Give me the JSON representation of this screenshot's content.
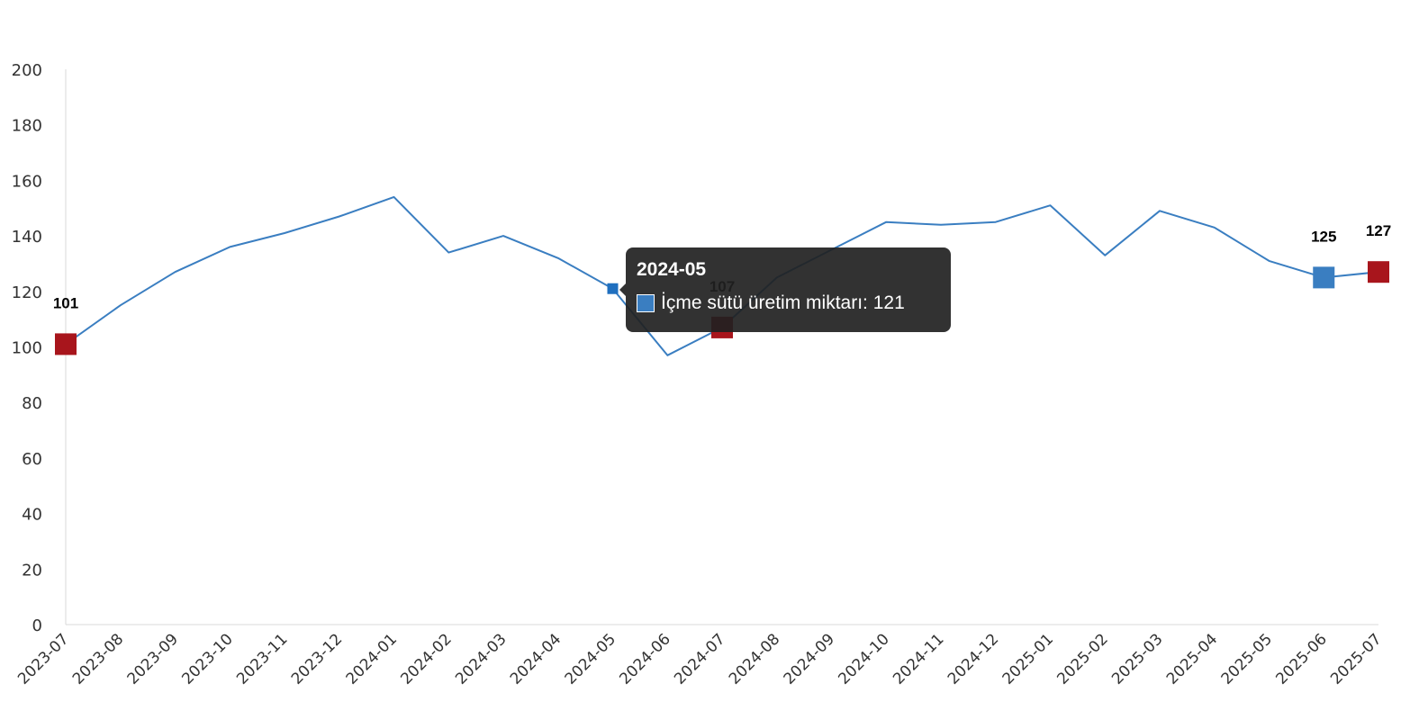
{
  "chart_data": {
    "type": "line",
    "categories": [
      "2023-07",
      "2023-08",
      "2023-09",
      "2023-10",
      "2023-11",
      "2023-12",
      "2024-01",
      "2024-02",
      "2024-03",
      "2024-04",
      "2024-05",
      "2024-06",
      "2024-07",
      "2024-08",
      "2024-09",
      "2024-10",
      "2024-11",
      "2024-12",
      "2025-01",
      "2025-02",
      "2025-03",
      "2025-04",
      "2025-05",
      "2025-06",
      "2025-07"
    ],
    "series": [
      {
        "name": "İçme sütü üretim miktarı",
        "values": [
          101,
          115,
          127,
          136,
          141,
          147,
          154,
          134,
          140,
          132,
          121,
          97,
          107,
          125,
          135,
          145,
          144,
          145,
          151,
          133,
          149,
          143,
          131,
          125,
          127
        ],
        "color": "#3A7EC1"
      }
    ],
    "ylim": [
      0,
      200
    ],
    "yticks": [
      "0",
      "20",
      "40",
      "60",
      "80",
      "100",
      "120",
      "140",
      "160",
      "180",
      "200"
    ],
    "grid": false,
    "highlights": [
      {
        "index": 0,
        "label": "101",
        "color": "#A8151C"
      },
      {
        "index": 12,
        "label": "107",
        "color": "#A8151C"
      },
      {
        "index": 23,
        "label": "125",
        "color": "#3A7EC1"
      },
      {
        "index": 24,
        "label": "127",
        "color": "#A8151C"
      }
    ],
    "active_index": 10,
    "xlabel": "",
    "ylabel": "",
    "title": ""
  },
  "tooltip": {
    "title": "2024-05",
    "series_label": "İçme sütü üretim miktarı: 121"
  }
}
